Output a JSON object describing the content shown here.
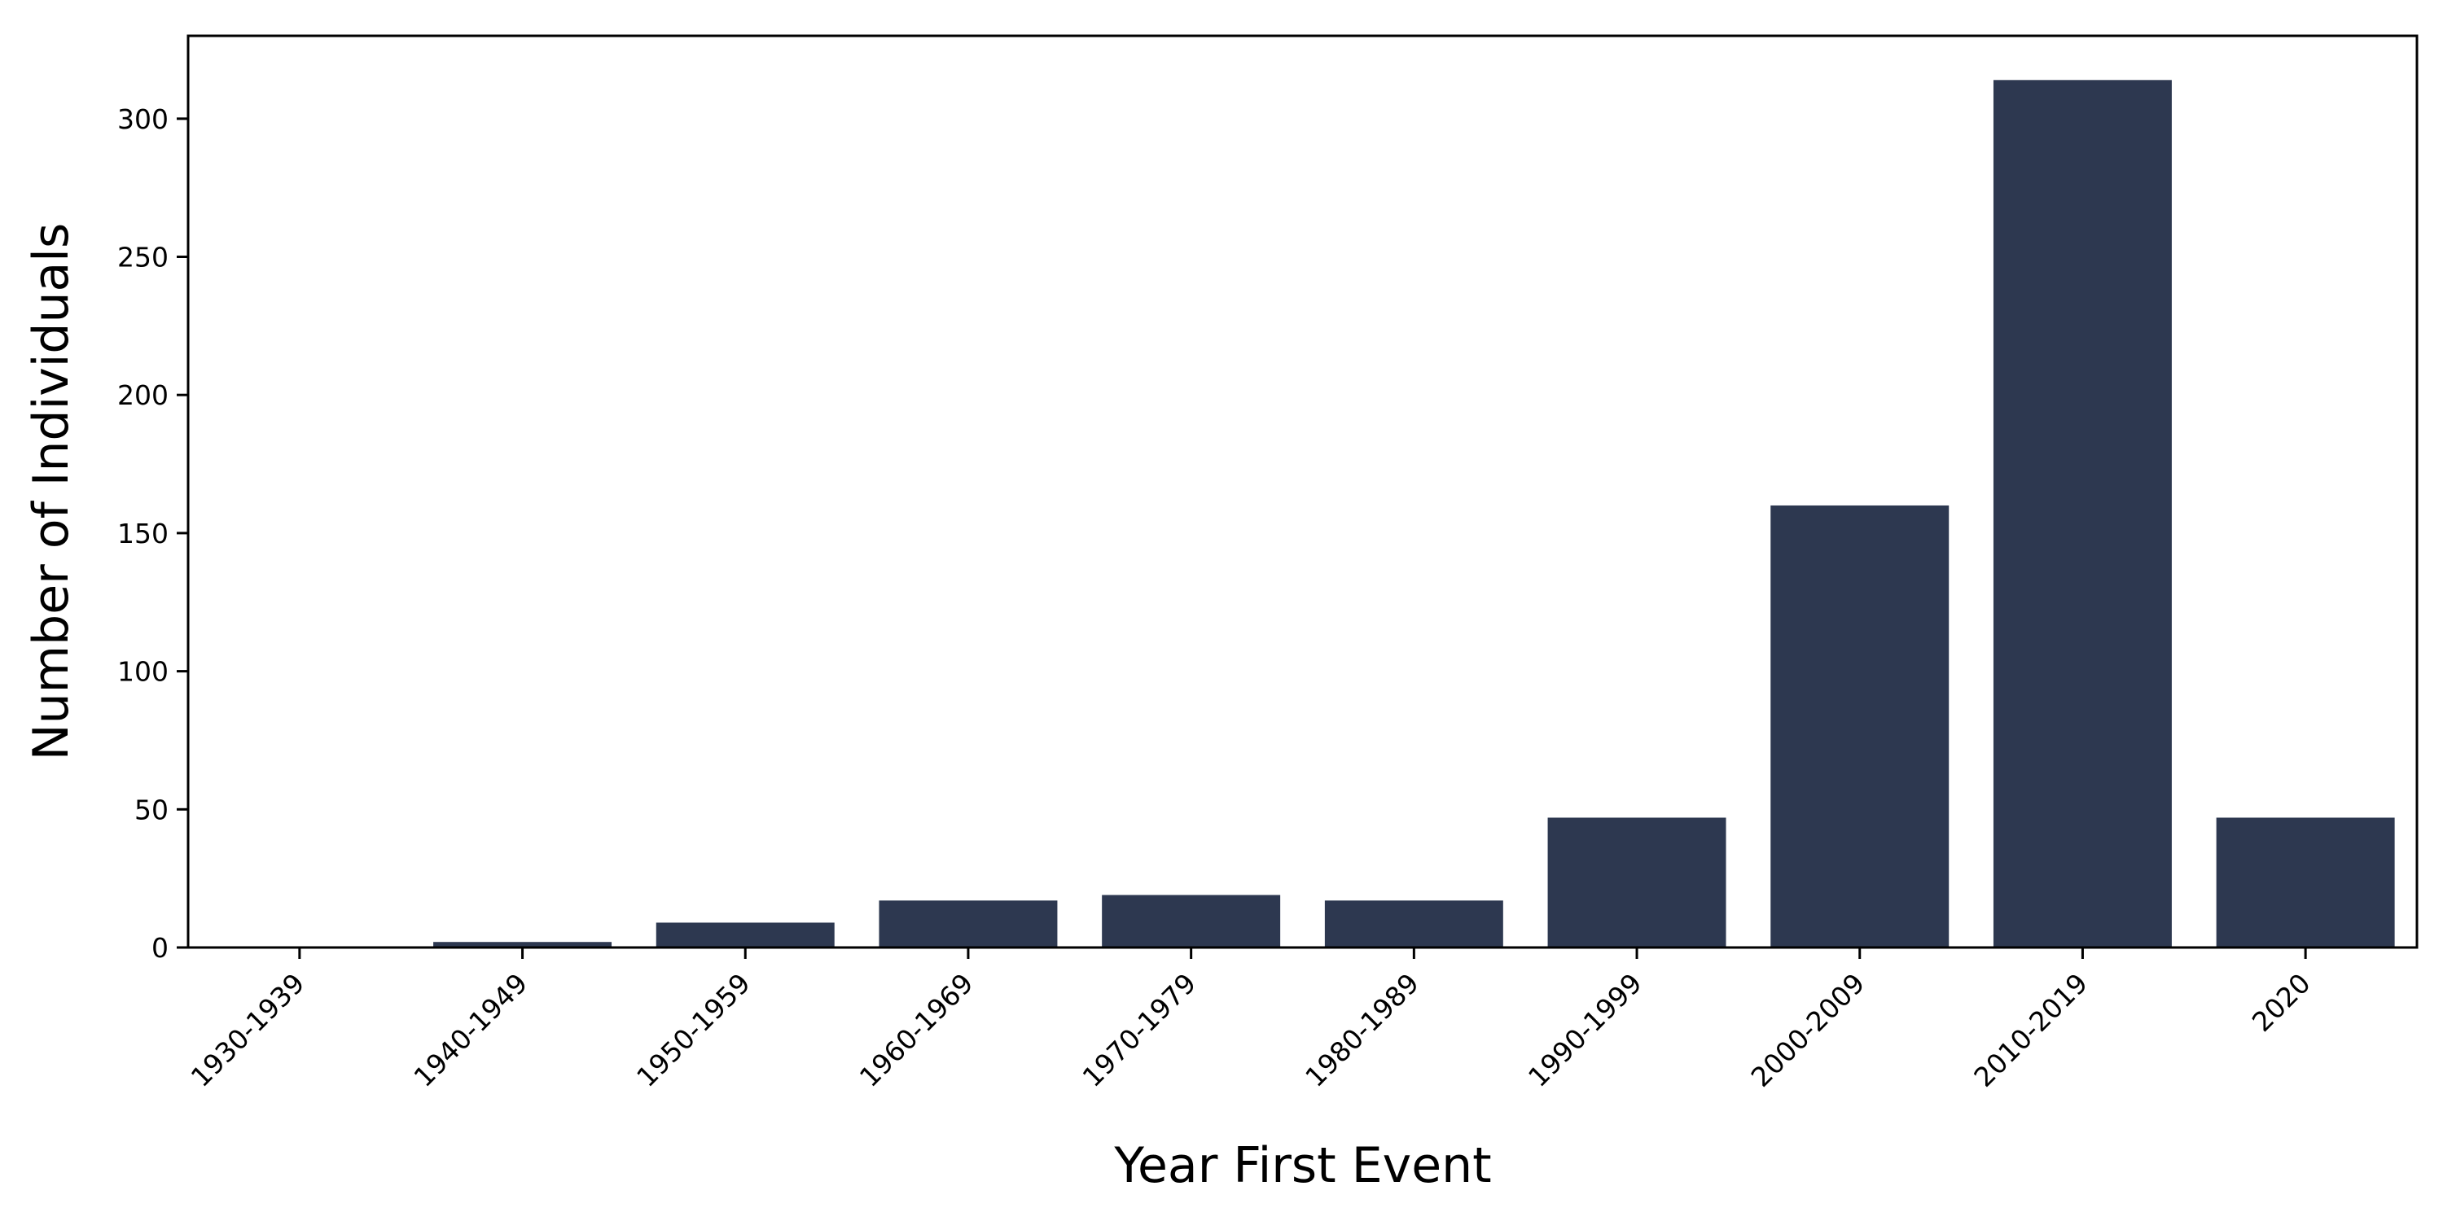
{
  "chart_data": {
    "type": "bar",
    "categories": [
      "1930-1939",
      "1940-1949",
      "1950-1959",
      "1960-1969",
      "1970-1979",
      "1980-1989",
      "1990-1999",
      "2000-2009",
      "2010-2019",
      "2020"
    ],
    "values": [
      0,
      2,
      9,
      17,
      19,
      17,
      47,
      160,
      314,
      47
    ],
    "title": "",
    "xlabel": "Year First Event",
    "ylabel": "Number of Individuals",
    "ylim": [
      0,
      330
    ],
    "yticks": [
      0,
      50,
      100,
      150,
      200,
      250,
      300
    ],
    "grid": false,
    "legend": "none",
    "bar_color": "#2d3850"
  }
}
